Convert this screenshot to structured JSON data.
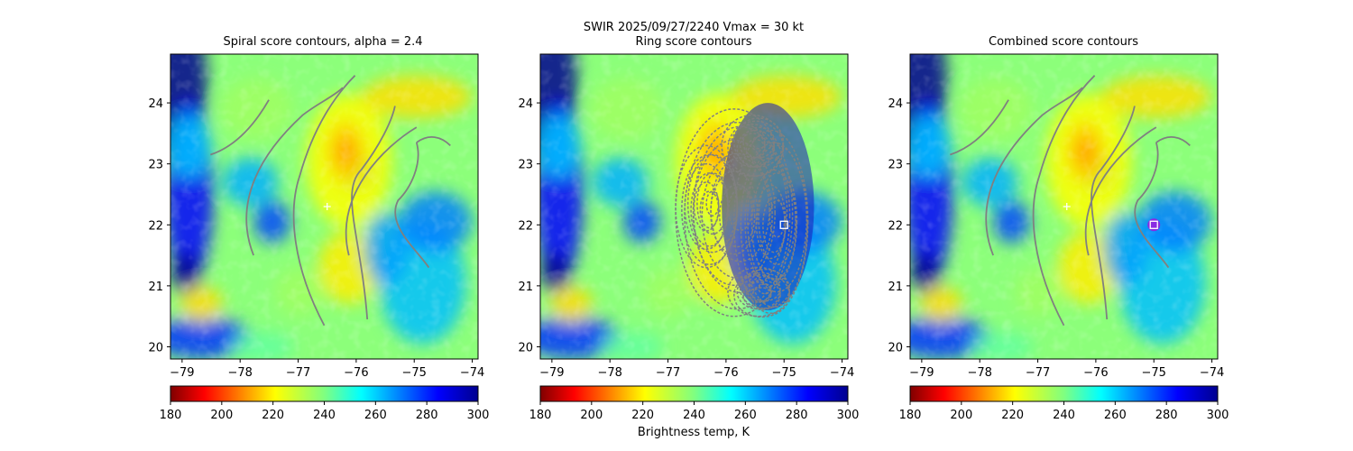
{
  "figure": {
    "suptitle_line1": "SWIR  2025/09/27/2240    Vmax = 30 kt",
    "colorbar_label": "Brightness temp, K"
  },
  "panels": [
    {
      "title": "Spiral score contours, alpha =  2.4"
    },
    {
      "title": "Ring score contours"
    },
    {
      "title": "Combined score contours"
    }
  ],
  "colors": {
    "contour": "#808080",
    "marker_white": "#ffffff",
    "circle_marker": "#8a2be2",
    "colormap": [
      "#800000",
      "#ff0000",
      "#ff8000",
      "#ffff00",
      "#80ff80",
      "#00ffff",
      "#0080ff",
      "#0000ff",
      "#00008f"
    ]
  },
  "chart_data": [
    {
      "type": "heatmap",
      "title": "Spiral score contours, alpha =  2.4",
      "xlim": [
        -79.2,
        -73.9
      ],
      "ylim": [
        19.8,
        24.8
      ],
      "xticks": [
        -79,
        -78,
        -77,
        -76,
        -75,
        -74
      ],
      "yticks": [
        20,
        21,
        22,
        23,
        24
      ],
      "colorbar": {
        "min": 180,
        "max": 300,
        "ticks": [
          180,
          200,
          220,
          240,
          260,
          280,
          300
        ],
        "cmap": "jet_r"
      },
      "markers": [
        {
          "kind": "plus",
          "lon": -76.5,
          "lat": 22.3,
          "color": "#ffffff"
        }
      ],
      "contours": "spiral",
      "grid": false
    },
    {
      "type": "heatmap",
      "title": "Ring score contours",
      "xlim": [
        -79.2,
        -73.9
      ],
      "ylim": [
        19.8,
        24.8
      ],
      "xticks": [
        -79,
        -78,
        -77,
        -76,
        -75,
        -74
      ],
      "yticks": [
        20,
        21,
        22,
        23,
        24
      ],
      "colorbar": {
        "min": 180,
        "max": 300,
        "ticks": [
          180,
          200,
          220,
          240,
          260,
          280,
          300
        ],
        "cmap": "jet_r",
        "label": "Brightness temp, K"
      },
      "markers": [
        {
          "kind": "square",
          "lon": -75.0,
          "lat": 22.0,
          "color": "#ffffff"
        }
      ],
      "contours": "ring",
      "grid": false
    },
    {
      "type": "heatmap",
      "title": "Combined score contours",
      "xlim": [
        -79.2,
        -73.9
      ],
      "ylim": [
        19.8,
        24.8
      ],
      "xticks": [
        -79,
        -78,
        -77,
        -76,
        -75,
        -74
      ],
      "yticks": [
        20,
        21,
        22,
        23,
        24
      ],
      "colorbar": {
        "min": 180,
        "max": 300,
        "ticks": [
          180,
          200,
          220,
          240,
          260,
          280,
          300
        ],
        "cmap": "jet_r"
      },
      "markers": [
        {
          "kind": "plus",
          "lon": -76.5,
          "lat": 22.3,
          "color": "#ffffff"
        },
        {
          "kind": "circle",
          "lon": -75.0,
          "lat": 22.0,
          "color": "#8a2be2"
        },
        {
          "kind": "square",
          "lon": -75.0,
          "lat": 22.0,
          "color": "#ffffff"
        }
      ],
      "contours": "spiral",
      "grid": false
    }
  ]
}
